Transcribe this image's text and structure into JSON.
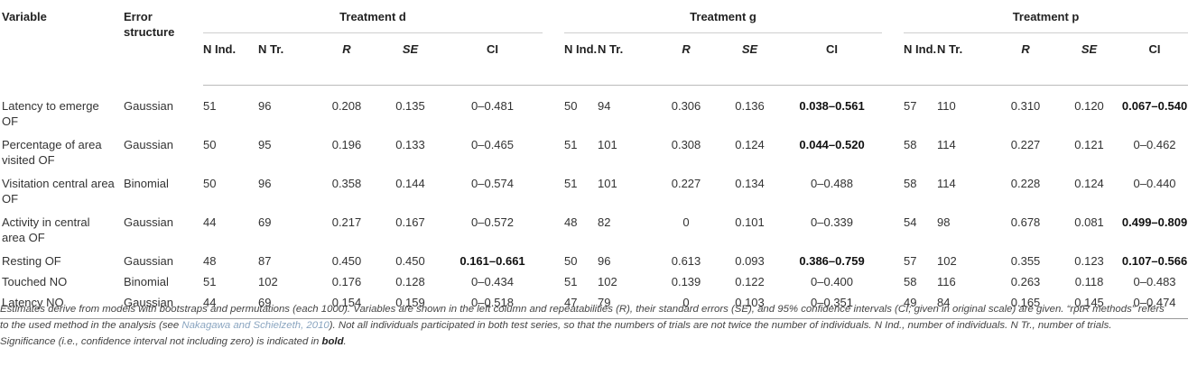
{
  "headers": {
    "variable": "Variable",
    "error_structure": "Error structure",
    "groups": [
      "Treatment d",
      "Treatment g",
      "Treatment p"
    ],
    "sub": [
      "N Ind.",
      "N Tr.",
      "R",
      "SE",
      "CI"
    ]
  },
  "rows": [
    {
      "variable": "Latency to emerge OF",
      "error": "Gaussian",
      "d": [
        "51",
        "96",
        "0.208",
        "0.135",
        "0–0.481"
      ],
      "d_sig": false,
      "g": [
        "50",
        "94",
        "0.306",
        "0.136",
        "0.038–0.561"
      ],
      "g_sig": true,
      "p": [
        "57",
        "110",
        "0.310",
        "0.120",
        "0.067–0.540"
      ],
      "p_sig": true
    },
    {
      "variable": "Percentage of area visited OF",
      "error": "Gaussian",
      "d": [
        "50",
        "95",
        "0.196",
        "0.133",
        "0–0.465"
      ],
      "d_sig": false,
      "g": [
        "51",
        "101",
        "0.308",
        "0.124",
        "0.044–0.520"
      ],
      "g_sig": true,
      "p": [
        "58",
        "114",
        "0.227",
        "0.121",
        "0–0.462"
      ],
      "p_sig": false
    },
    {
      "variable": "Visitation central area OF",
      "error": "Binomial",
      "d": [
        "50",
        "96",
        "0.358",
        "0.144",
        "0–0.574"
      ],
      "d_sig": false,
      "g": [
        "51",
        "101",
        "0.227",
        "0.134",
        "0–0.488"
      ],
      "g_sig": false,
      "p": [
        "58",
        "114",
        "0.228",
        "0.124",
        "0–0.440"
      ],
      "p_sig": false
    },
    {
      "variable": "Activity in central area OF",
      "error": "Gaussian",
      "d": [
        "44",
        "69",
        "0.217",
        "0.167",
        "0–0.572"
      ],
      "d_sig": false,
      "g": [
        "48",
        "82",
        "0",
        "0.101",
        "0–0.339"
      ],
      "g_sig": false,
      "p": [
        "54",
        "98",
        "0.678",
        "0.081",
        "0.499–0.809"
      ],
      "p_sig": true
    },
    {
      "variable": "Resting OF",
      "error": "Gaussian",
      "d": [
        "48",
        "87",
        "0.450",
        "0.450",
        "0.161–0.661"
      ],
      "d_sig": true,
      "g": [
        "50",
        "96",
        "0.613",
        "0.093",
        "0.386–0.759"
      ],
      "g_sig": true,
      "p": [
        "57",
        "102",
        "0.355",
        "0.123",
        "0.107–0.566"
      ],
      "p_sig": true
    },
    {
      "variable": "Touched NO",
      "error": "Binomial",
      "d": [
        "51",
        "102",
        "0.176",
        "0.128",
        "0–0.434"
      ],
      "d_sig": false,
      "g": [
        "51",
        "102",
        "0.139",
        "0.122",
        "0–0.400"
      ],
      "g_sig": false,
      "p": [
        "58",
        "116",
        "0.263",
        "0.118",
        "0–0.483"
      ],
      "p_sig": false
    },
    {
      "variable": "Latency NO",
      "error": "Gaussian",
      "d": [
        "44",
        "69",
        "0.154",
        "0.159",
        "0–0.518"
      ],
      "d_sig": false,
      "g": [
        "47",
        "79",
        "0",
        "0.103",
        "0–0.351"
      ],
      "g_sig": false,
      "p": [
        "49",
        "84",
        "0.165",
        "0.145",
        "0–0.474"
      ],
      "p_sig": false
    }
  ],
  "note": {
    "part1": "Estimates derive from models with bootstraps and permutations (each 1000). Variables are shown in the left column and repeatabilities (R), their standard errors (SE), and 95% confidence intervals (CI; given in original scale) are given. “rptR methods” refers to the used method in the analysis (see ",
    "link": "Nakagawa and Schielzeth, 2010",
    "part2": "). Not all individuals participated in both test series, so that the numbers of trials are not twice the number of individuals. N Ind., number of individuals. N Tr., number of trials. Significance (i.e., confidence interval not including zero) is indicated in ",
    "bold": "bold",
    "part3": "."
  }
}
